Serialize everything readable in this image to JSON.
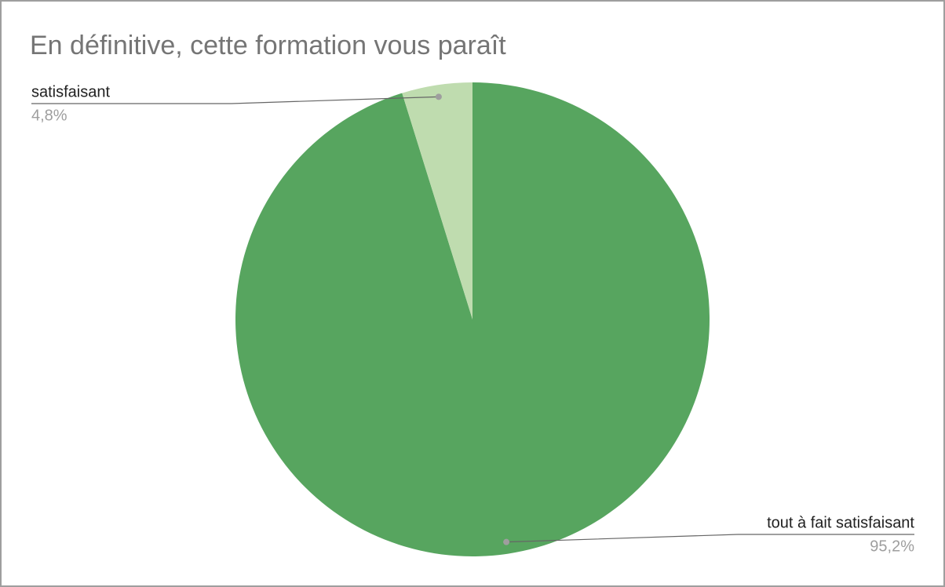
{
  "chart_data": {
    "type": "pie",
    "title": "En définitive, cette formation vous paraît",
    "categories": [
      "tout à fait satisfaisant",
      "satisfaisant"
    ],
    "values": [
      95.2,
      4.8
    ],
    "value_labels": [
      "95,2%",
      "4,8%"
    ],
    "colors": [
      "#57a55f",
      "#bfdcaf"
    ]
  }
}
